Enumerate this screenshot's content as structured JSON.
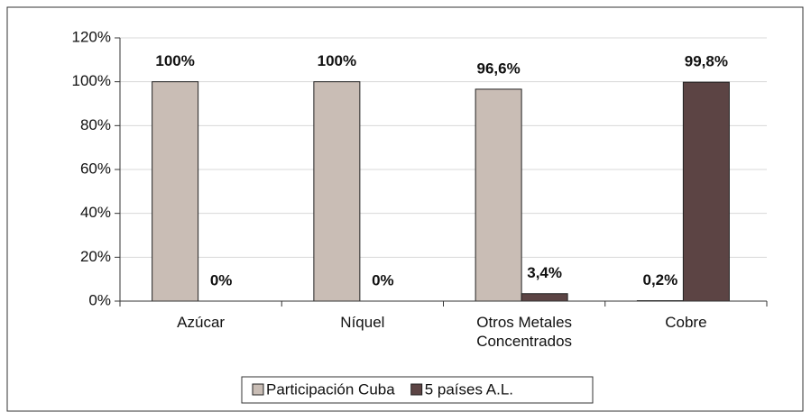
{
  "chart_data": {
    "type": "bar",
    "categories": [
      "Azúcar",
      "Níquel",
      "Otros Metales Concentrados",
      "Cobre"
    ],
    "series": [
      {
        "name": "Participación Cuba",
        "color": "#c9bdb5",
        "values": [
          100,
          100,
          96.6,
          0.2
        ],
        "value_labels": [
          "100%",
          "100%",
          "96,6%",
          "0,2%"
        ]
      },
      {
        "name": "5 países A.L.",
        "color": "#5c4444",
        "values": [
          0,
          0,
          3.4,
          99.8
        ],
        "value_labels": [
          "0%",
          "0%",
          "3,4%",
          "99,8%"
        ]
      }
    ],
    "ylim": [
      0,
      120
    ],
    "yticks": [
      {
        "value": 0,
        "label": "0%"
      },
      {
        "value": 20,
        "label": "20%"
      },
      {
        "value": 40,
        "label": "40%"
      },
      {
        "value": 60,
        "label": "60%"
      },
      {
        "value": 80,
        "label": "80%"
      },
      {
        "value": 100,
        "label": "100%"
      },
      {
        "value": 120,
        "label": "120%"
      }
    ],
    "grid": true,
    "legend": "bottom"
  }
}
